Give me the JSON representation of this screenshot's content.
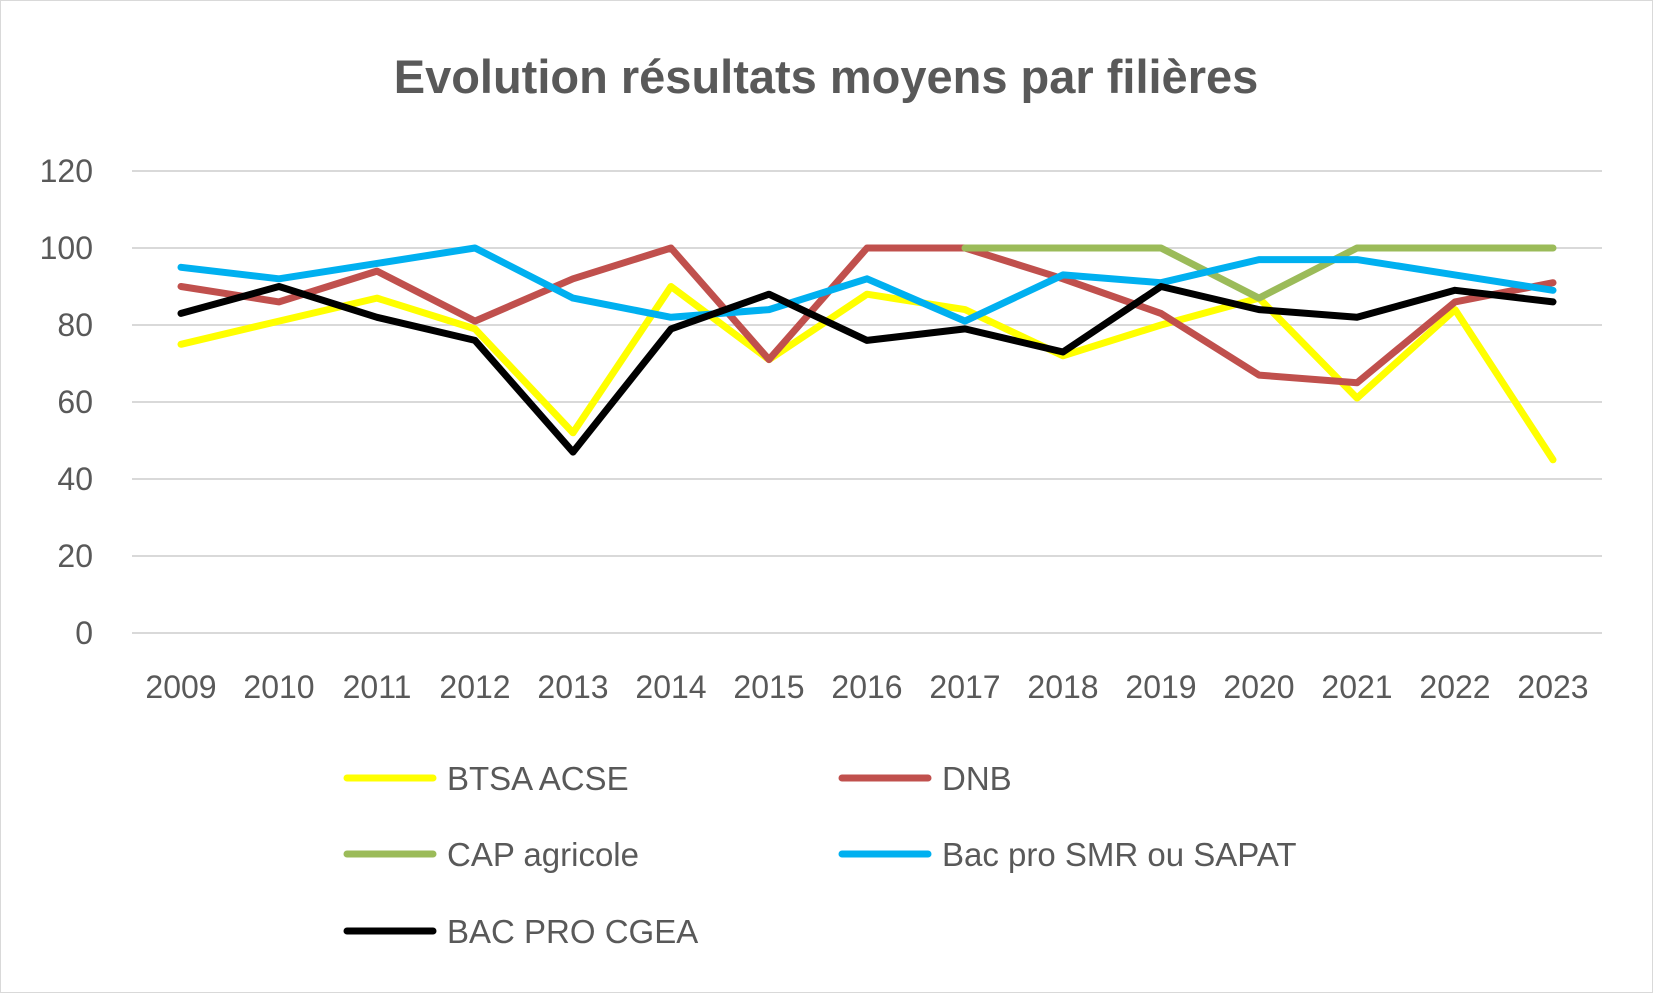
{
  "chart_data": {
    "type": "line",
    "title": "Evolution résultats moyens par filières",
    "xlabel": "",
    "ylabel": "",
    "categories": [
      "2009",
      "2010",
      "2011",
      "2012",
      "2013",
      "2014",
      "2015",
      "2016",
      "2017",
      "2018",
      "2019",
      "2020",
      "2021",
      "2022",
      "2023"
    ],
    "y_ticks": [
      "0",
      "20",
      "40",
      "60",
      "80",
      "100",
      "120"
    ],
    "ylim": [
      0,
      120
    ],
    "grid": "horizontal",
    "legend_position": "bottom",
    "series": [
      {
        "name": "BTSA ACSE",
        "color": "#ffff00",
        "values": [
          75,
          81,
          87,
          79,
          52,
          90,
          71,
          88,
          84,
          72,
          80,
          87,
          61,
          84,
          45
        ]
      },
      {
        "name": "DNB",
        "color": "#c0504d",
        "values": [
          90,
          86,
          94,
          81,
          92,
          100,
          71,
          100,
          100,
          92,
          83,
          67,
          65,
          86,
          91
        ]
      },
      {
        "name": "CAP agricole",
        "color": "#9bbb59",
        "values": [
          null,
          null,
          null,
          null,
          null,
          null,
          null,
          null,
          100,
          100,
          100,
          87,
          100,
          100,
          100
        ]
      },
      {
        "name": "Bac pro SMR ou SAPAT",
        "color": "#00b0f0",
        "values": [
          95,
          92,
          96,
          100,
          87,
          82,
          84,
          92,
          81,
          93,
          91,
          97,
          97,
          93,
          89
        ]
      },
      {
        "name": "BAC PRO CGEA",
        "color": "#000000",
        "values": [
          83,
          90,
          82,
          76,
          47,
          79,
          88,
          76,
          79,
          73,
          90,
          84,
          82,
          89,
          86
        ]
      }
    ]
  }
}
